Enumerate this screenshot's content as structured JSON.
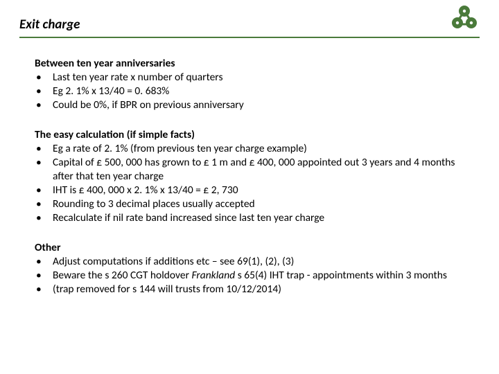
{
  "title": "Exit charge",
  "logo": {
    "primary": "#4a7a3a",
    "accent": "#ffffff"
  },
  "sections": [
    {
      "heading": "Between ten year anniversaries",
      "bullets": [
        "Last ten year rate x number of quarters",
        "Eg 2. 1% x 13/40 = 0. 683%",
        "Could be 0%, if BPR on previous anniversary"
      ]
    },
    {
      "heading": "The easy calculation (if simple facts)",
      "bullets": [
        "Eg a rate of 2. 1% (from previous ten year charge example)",
        "Capital of £ 500, 000 has grown to £ 1 m and £ 400, 000 appointed out 3 years and 4 months after that ten year charge",
        "IHT is £ 400, 000 x 2. 1% x 13/40 = £ 2, 730",
        "Rounding to 3 decimal places usually accepted",
        "Recalculate if nil rate band increased since last ten year charge"
      ]
    },
    {
      "heading": "Other",
      "bullets": [
        "Adjust computations if additions etc – see 69(1), (2), (3)",
        "__BEWARE__",
        "(trap removed for s 144 will trusts from 10/12/2014)"
      ]
    }
  ],
  "beware": {
    "pre": "Beware the s 260 CGT holdover ",
    "italic": "Frankland",
    "post": " s 65(4) IHT trap - appointments within 3 months"
  }
}
